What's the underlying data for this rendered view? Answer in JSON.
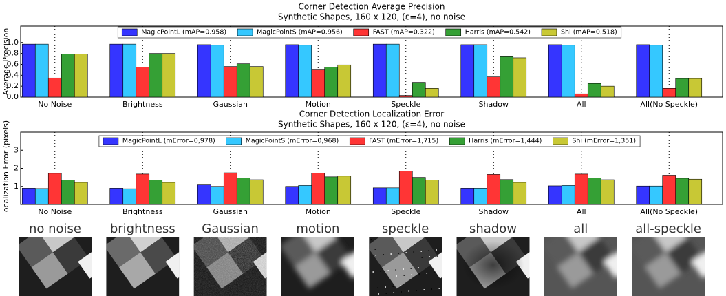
{
  "chart_data": [
    {
      "type": "bar",
      "title": "Corner Detection Average Precision",
      "subtitle": "Synthetic Shapes, 160 x 120, (ε=4), no noise",
      "y_label": "Average Precision",
      "categories": [
        "No Noise",
        "Brightness",
        "Gaussian",
        "Motion",
        "Speckle",
        "Shadow",
        "All",
        "All(No Speckle)"
      ],
      "series": [
        {
          "name": "MagicPointL (mAP=0.958)",
          "color": "#3535ff",
          "values": [
            0.97,
            0.97,
            0.96,
            0.96,
            0.97,
            0.96,
            0.96,
            0.96
          ]
        },
        {
          "name": "MagicPointS (mAP=0.956)",
          "color": "#35c8ff",
          "values": [
            0.97,
            0.97,
            0.95,
            0.95,
            0.97,
            0.96,
            0.95,
            0.95
          ]
        },
        {
          "name": "FAST (mAP=0.322)",
          "color": "#ff3535",
          "values": [
            0.35,
            0.55,
            0.56,
            0.51,
            0.03,
            0.37,
            0.06,
            0.16
          ]
        },
        {
          "name": "Harris (mAP=0.542)",
          "color": "#35a035",
          "values": [
            0.79,
            0.8,
            0.61,
            0.55,
            0.27,
            0.74,
            0.25,
            0.34
          ]
        },
        {
          "name": "Shi (mAP=0.518)",
          "color": "#c8c835",
          "values": [
            0.79,
            0.8,
            0.56,
            0.59,
            0.16,
            0.72,
            0.2,
            0.34
          ]
        }
      ],
      "ylim": [
        0,
        1.3
      ],
      "yticks": [
        {
          "value": 0,
          "label": "0.0"
        },
        0.2,
        0.4,
        0.6,
        0.8,
        {
          "value": 1,
          "label": "1.0"
        }
      ],
      "legend": "upper center"
    },
    {
      "type": "bar",
      "title": "Corner Detection Localization Error",
      "subtitle": "Synthetic Shapes, 160 x 120, (ε=4), no noise",
      "y_label": "Localization Error (pixels)",
      "categories": [
        "No Noise",
        "Brightness",
        "Gaussian",
        "Motion",
        "Speckle",
        "Shadow",
        "All",
        "All(No Speckle)"
      ],
      "series": [
        {
          "name": "MagicPointL (mError=0,978)",
          "color": "#3535ff",
          "values": [
            0.9,
            0.9,
            1.08,
            1.0,
            0.92,
            0.9,
            1.03,
            1.02
          ]
        },
        {
          "name": "MagicPointS (mError=0,968)",
          "color": "#35c8ff",
          "values": [
            0.88,
            0.87,
            1.0,
            1.05,
            0.92,
            0.9,
            1.05,
            1.02
          ]
        },
        {
          "name": "FAST (mError=1,715)",
          "color": "#ff3535",
          "values": [
            1.72,
            1.68,
            1.75,
            1.73,
            1.85,
            1.66,
            1.68,
            1.62
          ]
        },
        {
          "name": "Harris (mError=1,444)",
          "color": "#35a035",
          "values": [
            1.35,
            1.35,
            1.47,
            1.53,
            1.5,
            1.38,
            1.47,
            1.45
          ]
        },
        {
          "name": "Shi (mError=1,351)",
          "color": "#c8c835",
          "values": [
            1.22,
            1.22,
            1.37,
            1.57,
            1.35,
            1.22,
            1.37,
            1.4
          ]
        }
      ],
      "ylim": [
        0,
        4
      ],
      "yticks": [
        1,
        2,
        3
      ],
      "legend": "upper center"
    }
  ],
  "image_labels": [
    "no noise",
    "brightness",
    "Gaussian",
    "motion",
    "speckle",
    "shadow",
    "all",
    "all-speckle"
  ]
}
